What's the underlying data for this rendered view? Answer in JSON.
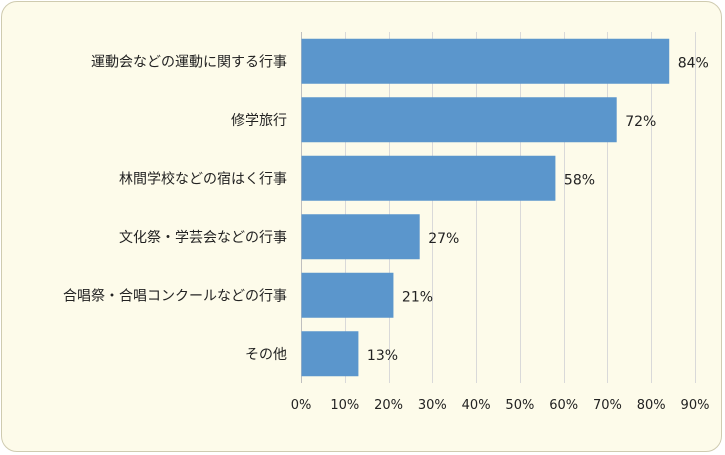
{
  "chart_data": {
    "type": "bar",
    "orientation": "horizontal",
    "categories": [
      "運動会などの運動に関する行事",
      "修学旅行",
      "林間学校などの宿はく行事",
      "文化祭・学芸会などの行事",
      "合唱祭・合唱コンクールなどの行事",
      "その他"
    ],
    "values": [
      84,
      72,
      58,
      27,
      21,
      13
    ],
    "value_labels": [
      "84%",
      "72%",
      "58%",
      "27%",
      "21%",
      "13%"
    ],
    "xlim": [
      0,
      90
    ],
    "x_ticks": [
      0,
      10,
      20,
      30,
      40,
      50,
      60,
      70,
      80,
      90
    ],
    "x_tick_labels": [
      "0%",
      "10%",
      "20%",
      "30%",
      "40%",
      "50%",
      "60%",
      "70%",
      "80%",
      "90%"
    ],
    "title": "",
    "xlabel": "",
    "ylabel": "",
    "grid": true,
    "bar_color": "#5b96cc",
    "background_color": "#fdfbea"
  }
}
